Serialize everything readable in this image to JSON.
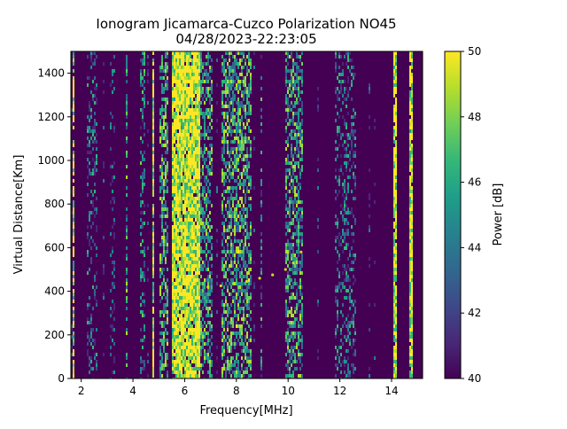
{
  "chart_data": {
    "type": "heatmap",
    "title_line1": "Ionogram Jicamarca-Cuzco Polarization NO45",
    "title_line2": "04/28/2023-22:23:05",
    "xlabel": "Frequency[MHz]",
    "ylabel": "Virtual Distance[Km]",
    "xlim": [
      1.6,
      15.2
    ],
    "ylim": [
      0,
      1500
    ],
    "xticks": [
      2,
      4,
      6,
      8,
      10,
      12,
      14
    ],
    "yticks": [
      0,
      200,
      400,
      600,
      800,
      1000,
      1200,
      1400
    ],
    "colorbar": {
      "label": "Power [dB]",
      "range": [
        40,
        50
      ],
      "ticks": [
        40,
        42,
        44,
        46,
        48,
        50
      ],
      "colormap": "viridis",
      "stops": [
        "#440154",
        "#482878",
        "#3e4989",
        "#31688e",
        "#26828e",
        "#1f9e89",
        "#35b779",
        "#6ece58",
        "#b5de2b",
        "#fde725"
      ]
    },
    "bands": [
      {
        "f_min": 1.65,
        "f_max": 1.75,
        "level": 0.85
      },
      {
        "f_min": 2.2,
        "f_max": 2.6,
        "level": 0.35
      },
      {
        "f_min": 3.1,
        "f_max": 3.3,
        "level": 0.25
      },
      {
        "f_min": 3.75,
        "f_max": 3.8,
        "level": 0.6
      },
      {
        "f_min": 4.3,
        "f_max": 4.5,
        "level": 0.45
      },
      {
        "f_min": 4.75,
        "f_max": 4.8,
        "level": 0.9
      },
      {
        "f_min": 5.0,
        "f_max": 5.4,
        "level": 0.6
      },
      {
        "f_min": 5.5,
        "f_max": 6.6,
        "level": 0.95
      },
      {
        "f_min": 6.6,
        "f_max": 7.1,
        "level": 0.55
      },
      {
        "f_min": 7.4,
        "f_max": 8.6,
        "level": 0.6
      },
      {
        "f_min": 8.9,
        "f_max": 9.0,
        "level": 0.4
      },
      {
        "f_min": 9.6,
        "f_max": 9.65,
        "level": 0.95
      },
      {
        "f_min": 9.9,
        "f_max": 10.6,
        "level": 0.55
      },
      {
        "f_min": 11.8,
        "f_max": 12.6,
        "level": 0.35
      },
      {
        "f_min": 14.1,
        "f_max": 14.2,
        "level": 0.95
      },
      {
        "f_min": 14.7,
        "f_max": 14.8,
        "level": 0.95
      }
    ],
    "trace": [
      {
        "x": 6.9,
        "y": 420
      },
      {
        "x": 7.4,
        "y": 425
      },
      {
        "x": 7.9,
        "y": 435
      },
      {
        "x": 8.4,
        "y": 445
      },
      {
        "x": 8.9,
        "y": 460
      },
      {
        "x": 9.4,
        "y": 475
      },
      {
        "x": 9.9,
        "y": 500
      },
      {
        "x": 10.2,
        "y": 530
      },
      {
        "x": 10.5,
        "y": 580
      }
    ]
  }
}
